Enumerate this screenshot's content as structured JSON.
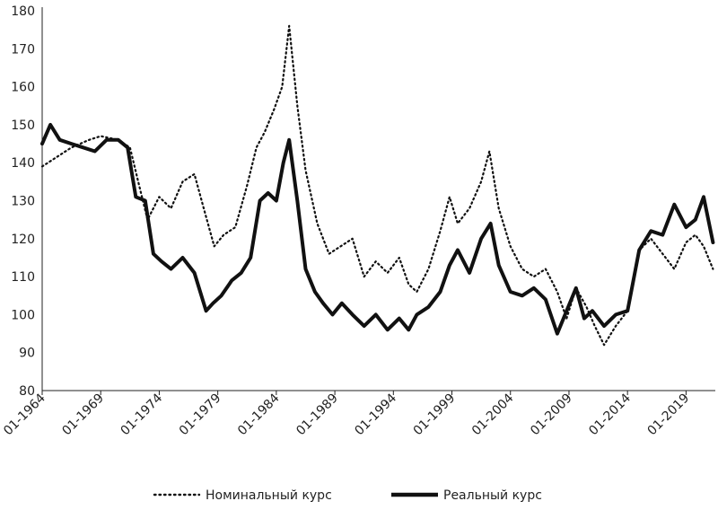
{
  "chart_data": {
    "type": "line",
    "title": "",
    "xlabel": "",
    "ylabel": "",
    "ylim": [
      80,
      180
    ],
    "y_ticks": [
      "80",
      "90",
      "100",
      "110",
      "120",
      "130",
      "140",
      "150",
      "160",
      "170",
      "180"
    ],
    "x_ticks": [
      "01-1964",
      "01-1969",
      "01-1974",
      "01-1979",
      "01-1984",
      "01-1989",
      "01-1994",
      "01-1999",
      "01-2004",
      "01-2009",
      "01-2014",
      "01-2019"
    ],
    "xlim": [
      1964.0,
      2021.5
    ],
    "grid": false,
    "legend_position": "bottom",
    "series": [
      {
        "name": "Номинальный курс",
        "style": "dotted",
        "color": "#111111",
        "x": [
          1964.0,
          1965.0,
          1966.5,
          1968.0,
          1969.0,
          1970.5,
          1971.5,
          1972.2,
          1973.0,
          1974.0,
          1975.0,
          1976.0,
          1977.0,
          1977.8,
          1978.7,
          1979.5,
          1980.5,
          1981.5,
          1982.3,
          1983.0,
          1983.8,
          1984.5,
          1985.1,
          1985.8,
          1986.5,
          1987.5,
          1988.5,
          1989.5,
          1990.5,
          1991.5,
          1992.5,
          1993.5,
          1994.5,
          1995.3,
          1996.0,
          1997.0,
          1998.0,
          1998.8,
          1999.5,
          2000.5,
          2001.5,
          2002.2,
          2003.0,
          2004.0,
          2005.0,
          2006.0,
          2007.0,
          2008.0,
          2008.8,
          2009.6,
          2010.5,
          2011.2,
          2012.0,
          2013.0,
          2014.0,
          2015.0,
          2016.0,
          2017.0,
          2018.0,
          2019.0,
          2019.8,
          2020.5,
          2021.3
        ],
        "values": [
          139,
          141,
          144,
          146,
          147,
          146,
          144,
          135,
          125,
          131,
          128,
          135,
          137,
          128,
          118,
          121,
          123,
          134,
          144,
          148,
          154,
          160,
          176,
          155,
          138,
          124,
          116,
          118,
          120,
          110,
          114,
          111,
          115,
          108,
          106,
          112,
          122,
          131,
          124,
          128,
          135,
          143,
          128,
          118,
          112,
          110,
          112,
          106,
          99,
          107,
          102,
          97,
          92,
          97,
          101,
          117,
          120,
          116,
          112,
          119,
          121,
          118,
          112
        ]
      },
      {
        "name": "Реальный курс",
        "style": "solid",
        "color": "#111111",
        "x": [
          1964.0,
          1964.7,
          1965.5,
          1966.5,
          1967.5,
          1968.5,
          1969.5,
          1970.5,
          1971.3,
          1972.0,
          1972.8,
          1973.5,
          1974.2,
          1975.0,
          1976.0,
          1977.0,
          1978.0,
          1978.6,
          1979.3,
          1980.2,
          1981.0,
          1981.8,
          1982.6,
          1983.3,
          1984.0,
          1984.6,
          1985.1,
          1985.8,
          1986.5,
          1987.3,
          1988.0,
          1988.8,
          1989.6,
          1990.5,
          1991.5,
          1992.5,
          1993.5,
          1994.5,
          1995.3,
          1996.0,
          1997.0,
          1998.0,
          1998.8,
          1999.5,
          2000.5,
          2001.5,
          2002.3,
          2003.0,
          2004.0,
          2005.0,
          2006.0,
          2007.0,
          2008.0,
          2008.8,
          2009.6,
          2010.3,
          2011.0,
          2012.0,
          2013.0,
          2014.0,
          2015.0,
          2016.0,
          2017.0,
          2018.0,
          2019.0,
          2019.8,
          2020.5,
          2021.3
        ],
        "values": [
          145,
          150,
          146,
          145,
          144,
          143,
          146,
          146,
          144,
          131,
          130,
          116,
          114,
          112,
          115,
          111,
          101,
          103,
          105,
          109,
          111,
          115,
          130,
          132,
          130,
          140,
          146,
          130,
          112,
          106,
          103,
          100,
          103,
          100,
          97,
          100,
          96,
          99,
          96,
          100,
          102,
          106,
          113,
          117,
          111,
          120,
          124,
          113,
          106,
          105,
          107,
          104,
          95,
          101,
          107,
          99,
          101,
          97,
          100,
          101,
          117,
          122,
          121,
          129,
          123,
          125,
          131,
          119
        ]
      }
    ]
  }
}
